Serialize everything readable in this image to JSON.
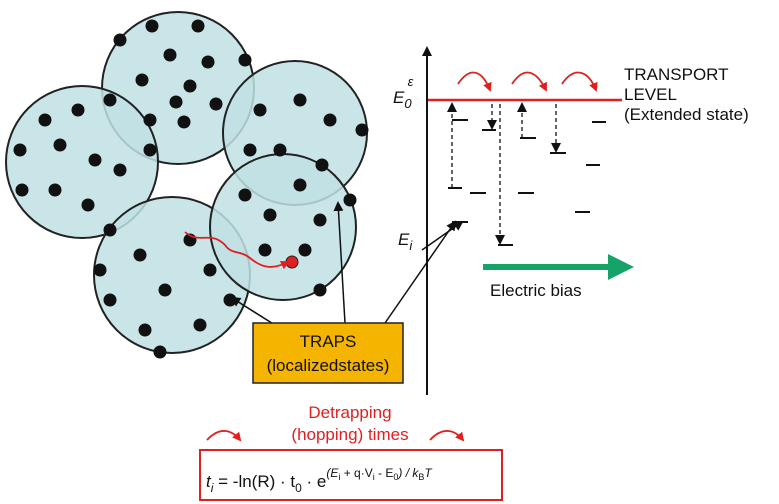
{
  "transport_level": [
    "TRANSPORT",
    "LEVEL",
    "(Extended state)"
  ],
  "e0_label": {
    "base": "E",
    "sub": "0",
    "sup": "ε"
  },
  "ei_label": {
    "base": "E",
    "sub": "i"
  },
  "bias_label": "Electric bias",
  "traps_box": [
    "TRAPS",
    "(localizedstates)"
  ],
  "detrapping": [
    "Detrapping",
    "(hopping) times"
  ],
  "formula": [
    "t",
    "i",
    " = -ln(R) · t",
    "0",
    " · e",
    "(E",
    "i",
    " + q·V",
    "i",
    " - E",
    "0",
    ") / k",
    "B",
    "T"
  ]
}
